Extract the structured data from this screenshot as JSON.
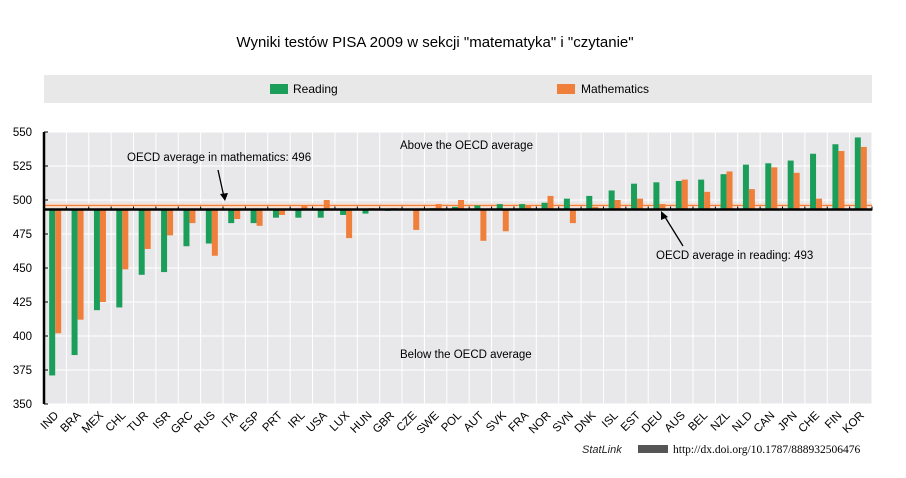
{
  "chart_data": {
    "type": "bar",
    "title": "Wyniki testów PISA 2009 w sekcji \"matematyka\" i \"czytanie\"",
    "xlabel": "",
    "ylabel": "",
    "ylim": [
      350,
      550
    ],
    "yticks": [
      350,
      375,
      400,
      425,
      450,
      475,
      500,
      525,
      550
    ],
    "baseline": 493,
    "grid": true,
    "legend_position": "top",
    "categories": [
      "IND",
      "BRA",
      "MEX",
      "CHL",
      "TUR",
      "ISR",
      "GRC",
      "RUS",
      "ITA",
      "ESP",
      "PRT",
      "IRL",
      "USA",
      "LUX",
      "HUN",
      "GBR",
      "CZE",
      "SWE",
      "POL",
      "AUT",
      "SVK",
      "FRA",
      "NOR",
      "SVN",
      "DNK",
      "ISL",
      "EST",
      "DEU",
      "AUS",
      "BEL",
      "NZL",
      "NLD",
      "CAN",
      "JPN",
      "CHE",
      "FIN",
      "KOR"
    ],
    "series": [
      {
        "name": "Reading",
        "color": "#1a9e5a",
        "values": [
          371,
          386,
          419,
          421,
          445,
          447,
          466,
          468,
          483,
          483,
          487,
          487,
          487,
          489,
          490,
          492,
          493,
          494,
          495,
          496,
          497,
          497,
          498,
          501,
          503,
          507,
          512,
          513,
          514,
          515,
          519,
          526,
          527,
          529,
          534,
          541,
          546
        ]
      },
      {
        "name": "Mathematics",
        "color": "#f07f3c",
        "values": [
          402,
          412,
          425,
          449,
          464,
          474,
          483,
          459,
          486,
          481,
          489,
          496,
          500,
          472,
          494,
          494,
          478,
          497,
          500,
          470,
          477,
          496,
          503,
          483,
          495,
          500,
          501,
          497,
          515,
          506,
          521,
          508,
          524,
          520,
          501,
          536,
          539
        ]
      }
    ],
    "annotations": {
      "math_avg": "OECD average in mathematics: 496",
      "reading_avg": "OECD average in reading: 493",
      "above": "Above the OECD average",
      "below": "Below the OECD average"
    },
    "math_avg_value": 496,
    "reading_avg_value": 493
  },
  "footer": {
    "statlink": "StatLink",
    "url": "http://dx.doi.org/10.1787/888932506476"
  }
}
